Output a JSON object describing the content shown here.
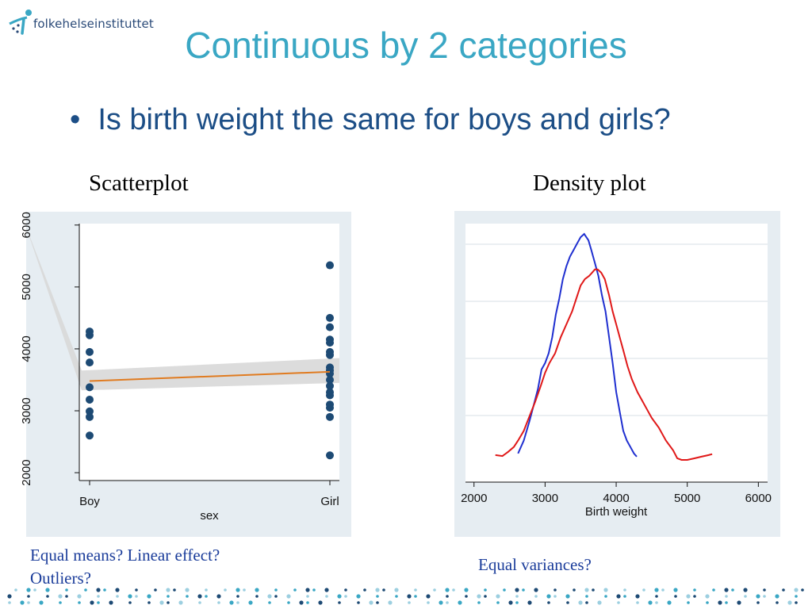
{
  "header": {
    "logo_text": "folkehelseinstituttet",
    "title": "Continuous by 2 categories",
    "bullet": "Is birth weight the same for boys and girls?"
  },
  "colors": {
    "title": "#3aa7c4",
    "bullet": "#1c4e86",
    "plot_bg": "#e6edf2",
    "scatter_dots": "#1d4a74",
    "fit_line": "#e07b20",
    "ci_band": "#d8d8d8",
    "boy_density": "#1f2fd0",
    "girl_density": "#e01818",
    "caption": "#1a3c9a"
  },
  "left_panel": {
    "heading": "Scatterplot",
    "caption_lines": [
      "Equal means? Linear effect?",
      "Outliers?"
    ]
  },
  "right_panel": {
    "heading": "Density plot",
    "caption": "Equal variances?"
  },
  "chart_data": [
    {
      "type": "scatter",
      "title": "",
      "xlabel": "sex",
      "ylabel": "",
      "categories": [
        "Boy",
        "Girl"
      ],
      "yticks": [
        2000,
        3000,
        4000,
        5000,
        6000
      ],
      "ylim": [
        1950,
        6100
      ],
      "points": {
        "Boy": [
          4280,
          4220,
          3950,
          3780,
          3380,
          3180,
          2990,
          2900,
          2600
        ],
        "Girl": [
          5350,
          4500,
          4350,
          4150,
          4100,
          3950,
          3900,
          3700,
          3650,
          3600,
          3500,
          3400,
          3300,
          3250,
          3100,
          3050,
          2900,
          2280
        ]
      },
      "fit_line": {
        "Boy": 3480,
        "Girl": 3630
      },
      "ci_band": {
        "Boy": [
          3330,
          3650
        ],
        "Girl": [
          3450,
          3850
        ]
      },
      "grid": false
    },
    {
      "type": "line",
      "title": "",
      "xlabel": "Birth weight",
      "ylabel": "",
      "xticks": [
        2000,
        3000,
        4000,
        5000,
        6000
      ],
      "xlim": [
        1880,
        6130
      ],
      "ylim": [
        0,
        1.0
      ],
      "grid": true,
      "series": [
        {
          "color": "#1f2fd0",
          "x": [
            2620,
            2700,
            2780,
            2840,
            2900,
            2950,
            3000,
            3050,
            3100,
            3150,
            3200,
            3250,
            3300,
            3350,
            3400,
            3450,
            3500,
            3550,
            3580,
            3610,
            3650,
            3700,
            3750,
            3800,
            3850,
            3900,
            3950,
            4000,
            4050,
            4100,
            4150,
            4200,
            4250,
            4290
          ],
          "y": [
            0.02,
            0.06,
            0.12,
            0.17,
            0.22,
            0.28,
            0.3,
            0.33,
            0.38,
            0.45,
            0.5,
            0.56,
            0.6,
            0.63,
            0.65,
            0.67,
            0.69,
            0.7,
            0.69,
            0.68,
            0.65,
            0.61,
            0.57,
            0.51,
            0.46,
            0.38,
            0.3,
            0.21,
            0.15,
            0.09,
            0.06,
            0.04,
            0.02,
            0.01
          ]
        },
        {
          "color": "#e01818",
          "x": [
            2300,
            2400,
            2480,
            2560,
            2620,
            2700,
            2780,
            2860,
            2940,
            3000,
            3060,
            3140,
            3220,
            3300,
            3380,
            3440,
            3500,
            3560,
            3620,
            3660,
            3700,
            3740,
            3790,
            3840,
            3900,
            3950,
            4000,
            4050,
            4100,
            4160,
            4220,
            4300,
            4400,
            4500,
            4600,
            4700,
            4800,
            4860,
            4920,
            5000,
            5100,
            5200,
            5300,
            5350
          ],
          "y": [
            0.015,
            0.012,
            0.025,
            0.04,
            0.06,
            0.09,
            0.135,
            0.18,
            0.23,
            0.27,
            0.3,
            0.33,
            0.38,
            0.42,
            0.46,
            0.5,
            0.54,
            0.56,
            0.57,
            0.58,
            0.59,
            0.59,
            0.58,
            0.56,
            0.51,
            0.46,
            0.42,
            0.38,
            0.34,
            0.29,
            0.25,
            0.21,
            0.17,
            0.13,
            0.1,
            0.06,
            0.03,
            0.005,
            0.0,
            0.0,
            0.005,
            0.01,
            0.015,
            0.018
          ]
        }
      ]
    }
  ]
}
